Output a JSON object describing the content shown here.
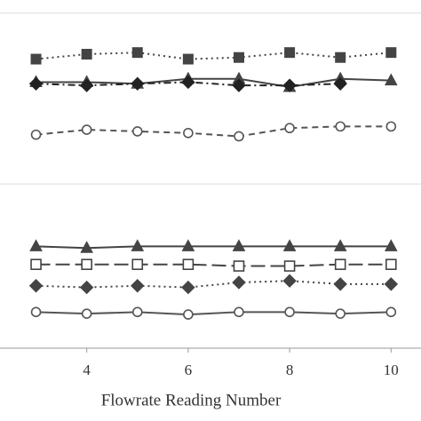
{
  "chart_data": {
    "type": "line",
    "xlabel": "Flowrate Reading Number",
    "xlim": [
      2.29,
      10.59
    ],
    "xticks": [
      4,
      6,
      8,
      10
    ],
    "ylim": [
      0,
      21.2
    ],
    "ygrid": [
      10,
      20.4
    ],
    "x": [
      3,
      4,
      5,
      6,
      7,
      8,
      9,
      10
    ],
    "series": [
      {
        "color": "#444444",
        "marker": "square",
        "dash": "dot",
        "values": [
          17.6,
          17.9,
          18.0,
          17.6,
          17.7,
          18.0,
          17.7,
          18.0
        ]
      },
      {
        "color": "#444444",
        "marker": "triangle",
        "dash": "solid",
        "values": [
          16.2,
          16.2,
          16.1,
          16.4,
          16.4,
          15.9,
          16.4,
          16.3
        ]
      },
      {
        "color": "#222222",
        "marker": "diamond",
        "dash": "dashdot",
        "values": [
          16.1,
          16.0,
          16.1,
          16.2,
          16.0,
          16.0,
          16.1,
          null
        ]
      },
      {
        "color": "#555555",
        "marker": "circle-open",
        "dash": "dash",
        "values": [
          13.0,
          13.3,
          13.2,
          13.1,
          12.9,
          13.4,
          13.5,
          13.5
        ]
      },
      {
        "color": "#444444",
        "marker": "triangle",
        "dash": "solid",
        "values": [
          6.2,
          6.1,
          6.2,
          6.2,
          6.2,
          6.2,
          6.2,
          6.2
        ]
      },
      {
        "color": "#444444",
        "marker": "square-open",
        "dash": "longdash",
        "values": [
          5.1,
          5.1,
          5.1,
          5.1,
          5.0,
          5.0,
          5.1,
          5.1
        ]
      },
      {
        "color": "#444444",
        "marker": "diamond",
        "dash": "dot",
        "values": [
          3.8,
          3.7,
          3.8,
          3.7,
          4.0,
          4.1,
          3.9,
          3.9
        ]
      },
      {
        "color": "#555555",
        "marker": "circle-open",
        "dash": "solid",
        "values": [
          2.2,
          2.1,
          2.2,
          2.05,
          2.2,
          2.2,
          2.1,
          2.2
        ]
      }
    ]
  }
}
